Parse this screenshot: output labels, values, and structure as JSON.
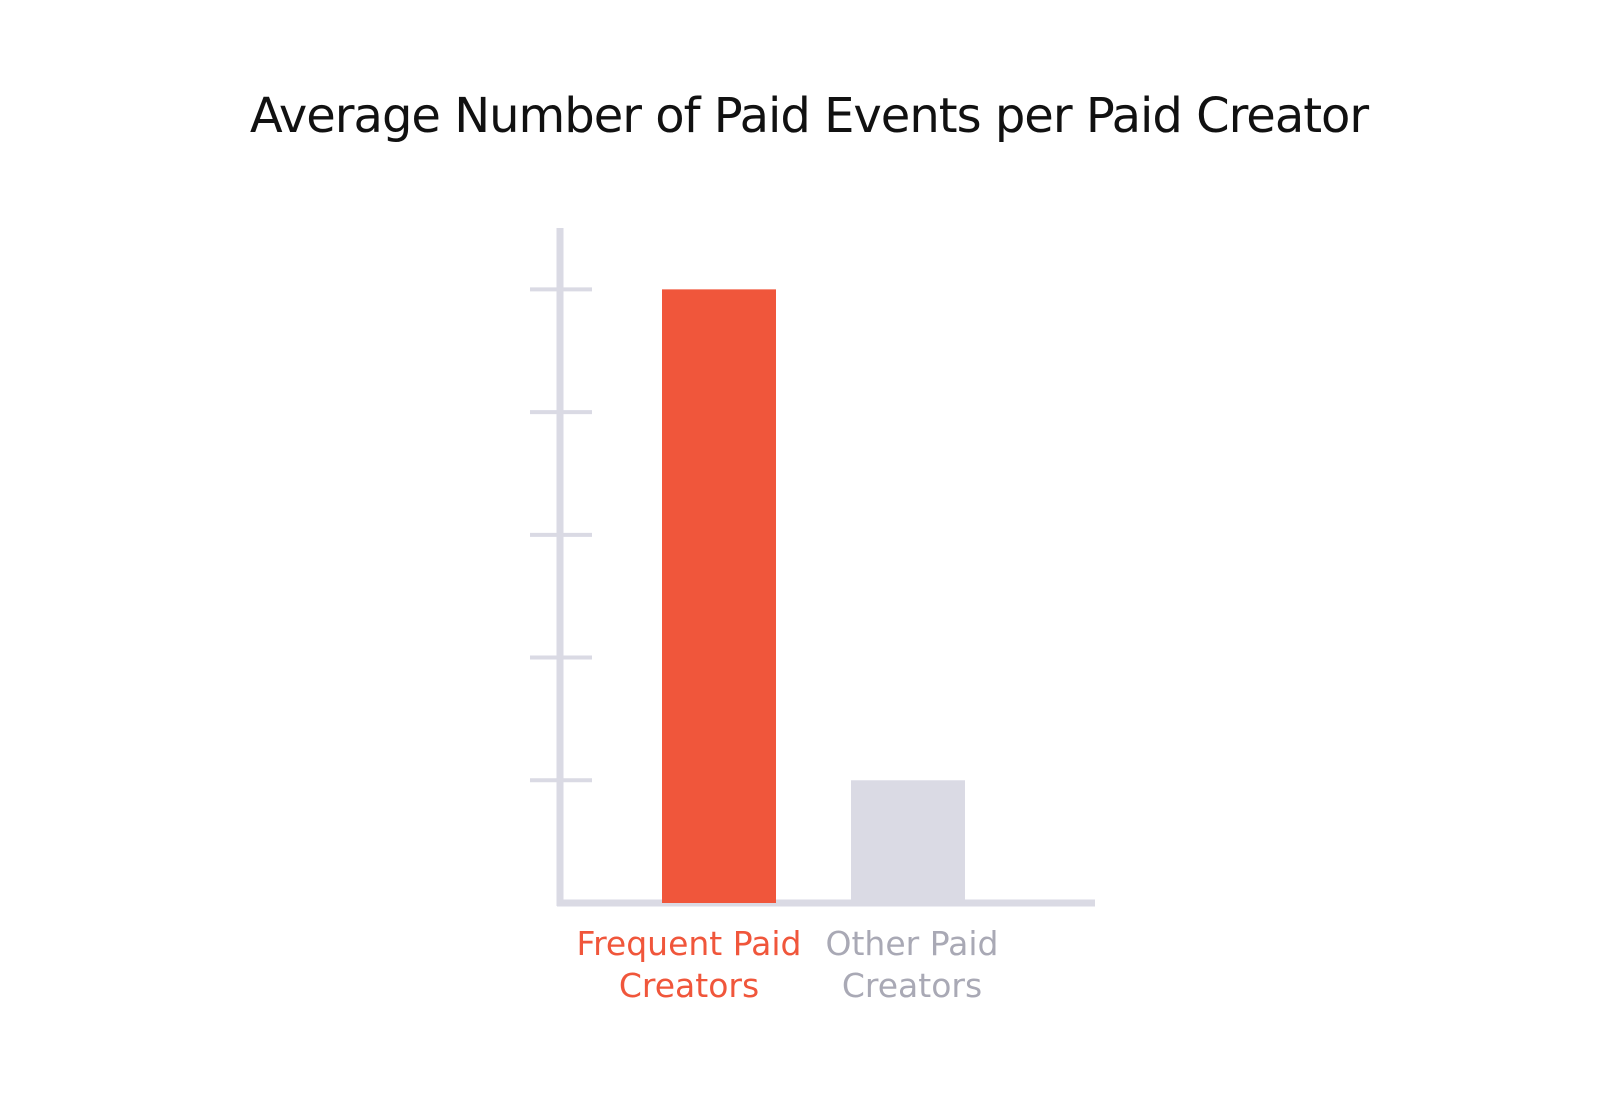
{
  "chart_data": {
    "type": "bar",
    "title": "Average Number of Paid Events per Paid Creator",
    "xlabel": "",
    "ylabel": "",
    "categories": [
      "Frequent Paid Creators",
      "Other Paid Creators"
    ],
    "category_lines": [
      [
        "Frequent Paid",
        "Creators"
      ],
      [
        "Other Paid",
        "Creators"
      ]
    ],
    "values": [
      5,
      1
    ],
    "ylim": [
      0,
      5.5
    ],
    "y_ticks": [
      1,
      2,
      3,
      4,
      5
    ],
    "tick_labels_shown": false,
    "grid": false,
    "legend": "none",
    "colors": {
      "bars": [
        "#F0563B",
        "#DADAE4"
      ],
      "labels": [
        "#F0563B",
        "#A9A9B5"
      ],
      "axis": "#DADAE4",
      "title": "#111111"
    }
  }
}
